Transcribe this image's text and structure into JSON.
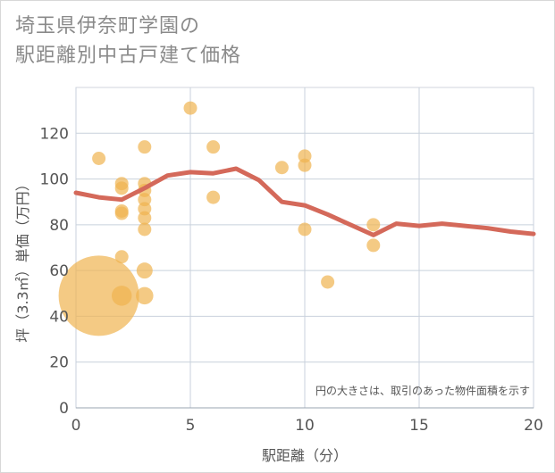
{
  "title_line1": "埼玉県伊奈町学園の",
  "title_line2": "駅距離別中古戸建て価格",
  "chart_data": {
    "type": "scatter",
    "title": "埼玉県伊奈町学園の駅距離別中古戸建て価格",
    "xlabel": "駅距離（分）",
    "ylabel": "坪（3.3㎡）単価（万円）",
    "xlim": [
      0,
      20
    ],
    "ylim": [
      0,
      140
    ],
    "x_ticks": [
      "0",
      "5",
      "10",
      "15",
      "20"
    ],
    "y_ticks": [
      "0",
      "20",
      "40",
      "60",
      "80",
      "100",
      "120"
    ],
    "note": "円の大きさは、取引のあった物件面積を示す",
    "points": [
      {
        "x": 1,
        "y": 109,
        "size": 1
      },
      {
        "x": 1,
        "y": 49,
        "size": 6
      },
      {
        "x": 2,
        "y": 98,
        "size": 1
      },
      {
        "x": 2,
        "y": 96,
        "size": 1
      },
      {
        "x": 2,
        "y": 86,
        "size": 1
      },
      {
        "x": 2,
        "y": 85,
        "size": 1
      },
      {
        "x": 2,
        "y": 66,
        "size": 1
      },
      {
        "x": 2,
        "y": 49,
        "size": 1.5
      },
      {
        "x": 3,
        "y": 114,
        "size": 1
      },
      {
        "x": 3,
        "y": 98,
        "size": 1
      },
      {
        "x": 3,
        "y": 95,
        "size": 1
      },
      {
        "x": 3,
        "y": 91,
        "size": 1
      },
      {
        "x": 3,
        "y": 87,
        "size": 1
      },
      {
        "x": 3,
        "y": 83,
        "size": 1
      },
      {
        "x": 3,
        "y": 78,
        "size": 1
      },
      {
        "x": 3,
        "y": 60,
        "size": 1.2
      },
      {
        "x": 3,
        "y": 49,
        "size": 1.3
      },
      {
        "x": 5,
        "y": 131,
        "size": 1
      },
      {
        "x": 6,
        "y": 114,
        "size": 1
      },
      {
        "x": 6,
        "y": 92,
        "size": 1
      },
      {
        "x": 9,
        "y": 105,
        "size": 1
      },
      {
        "x": 10,
        "y": 110,
        "size": 1
      },
      {
        "x": 10,
        "y": 106,
        "size": 1
      },
      {
        "x": 10,
        "y": 78,
        "size": 1
      },
      {
        "x": 11,
        "y": 55,
        "size": 1
      },
      {
        "x": 13,
        "y": 80,
        "size": 1
      },
      {
        "x": 13,
        "y": 71,
        "size": 1
      }
    ],
    "trend_line": {
      "x": [
        0,
        1,
        2,
        3,
        4,
        5,
        6,
        7,
        8,
        9,
        10,
        11,
        12,
        13,
        14,
        15,
        16,
        17,
        18,
        19,
        20
      ],
      "y": [
        94,
        92,
        91,
        96,
        101.5,
        103,
        102.5,
        104.5,
        99.5,
        90,
        88.5,
        84.5,
        80,
        75.5,
        80.5,
        79.5,
        80.5,
        79.5,
        78.5,
        77,
        76
      ]
    },
    "colors": {
      "points": "#f0b450",
      "line": "#d4695a",
      "grid": "#c8d1dc"
    }
  }
}
